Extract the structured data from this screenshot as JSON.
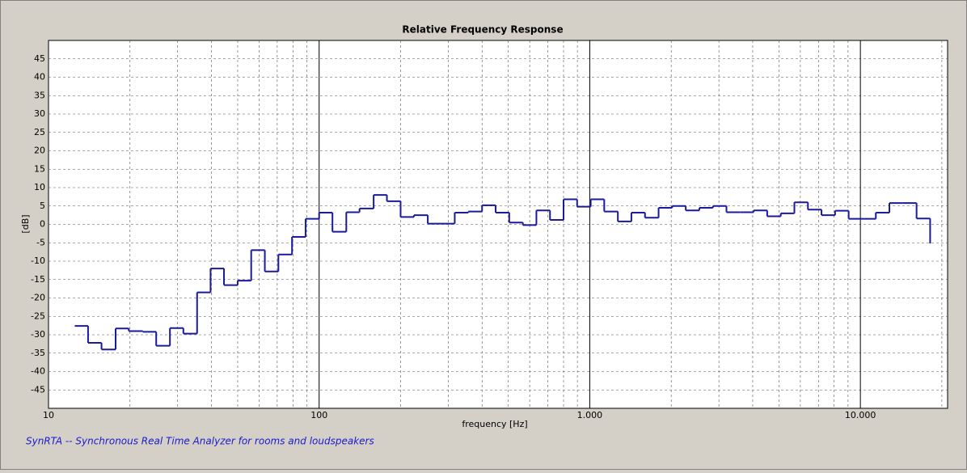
{
  "chart_data": {
    "type": "step",
    "title": "Relative Frequency Response",
    "x_label": "frequency [Hz]",
    "y_label": "[dB]",
    "footer": "SynRTA -- Synchronous Real Time Analyzer for rooms and loudspeakers",
    "log_x": true,
    "grid": true,
    "series": [
      {
        "color": "#1a1a9c",
        "x": [
          12.5,
          14.0,
          15.7,
          17.7,
          19.8,
          22.3,
          25,
          28.1,
          31.5,
          35.4,
          39.7,
          44.5,
          50,
          56.1,
          63,
          70.7,
          79.4,
          89.1,
          100,
          112,
          126,
          141,
          159,
          178,
          200,
          224,
          252,
          283,
          317,
          356,
          400,
          449,
          504,
          566,
          635,
          713,
          800,
          898,
          1008,
          1131,
          1270,
          1425,
          1600,
          1796,
          2016,
          2263,
          2540,
          2851,
          3200,
          3592,
          4032,
          4525,
          5080,
          5702,
          6400,
          7184,
          8063,
          9051,
          10159,
          11404,
          12800,
          14368,
          16127,
          18102
        ],
        "values": [
          -27.6,
          -32.2,
          -34,
          -28.3,
          -29,
          -29.2,
          -33,
          -28.2,
          -29.7,
          -18.5,
          -12,
          -16.5,
          -15.3,
          -7,
          -12.8,
          -8.2,
          -3.4,
          1.5,
          3.2,
          -2,
          3.3,
          4.3,
          8,
          6.3,
          2,
          2.5,
          0.2,
          0.2,
          3.2,
          3.5,
          5.2,
          3.2,
          0.5,
          -0.2,
          3.8,
          1.2,
          6.8,
          4.8,
          6.8,
          3.5,
          0.8,
          3.2,
          1.8,
          4.5,
          5,
          3.8,
          4.5,
          5,
          3.3,
          3.3,
          3.8,
          2.2,
          3,
          6,
          4,
          2.5,
          3.7,
          1.5,
          1.5,
          3.2,
          5.8,
          5.8,
          1.6,
          -5
        ]
      }
    ],
    "xlim": [
      10,
      21000
    ],
    "xticks": [
      10,
      100,
      {
        "value": 1000,
        "label": "1.000"
      },
      {
        "value": 10000,
        "label": "10.000"
      }
    ],
    "xminorticks": [
      20,
      30,
      40,
      50,
      60,
      70,
      80,
      90,
      200,
      300,
      400,
      500,
      600,
      700,
      800,
      900,
      2000,
      3000,
      4000,
      5000,
      6000,
      7000,
      8000,
      9000,
      20000
    ],
    "ylim": [
      -50,
      50
    ],
    "yticks": [
      -45,
      -40,
      -35,
      -30,
      -25,
      -20,
      -15,
      -10,
      -5,
      0,
      5,
      10,
      15,
      20,
      25,
      30,
      35,
      40,
      45
    ]
  }
}
